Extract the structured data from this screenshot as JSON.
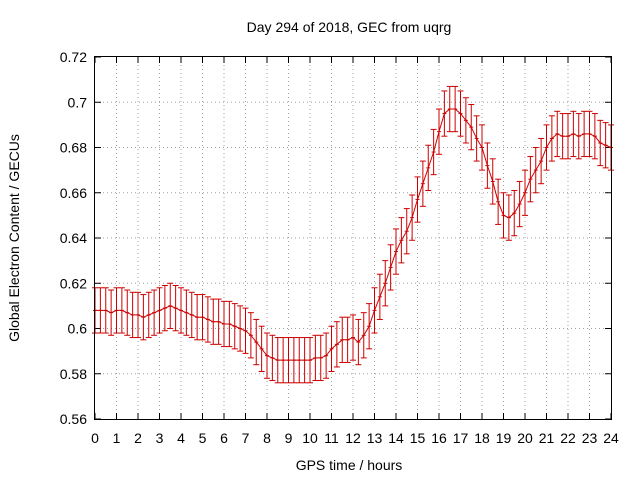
{
  "chart_data": {
    "type": "line",
    "title": "Day 294 of 2018, GEC from uqrg",
    "xlabel": "GPS time / hours",
    "ylabel": "Global Electron Content / GECUs",
    "xlim": [
      0,
      24
    ],
    "ylim": [
      0.56,
      0.72
    ],
    "grid": true,
    "x_ticks": [
      0,
      1,
      2,
      3,
      4,
      5,
      6,
      7,
      8,
      9,
      10,
      11,
      12,
      13,
      14,
      15,
      16,
      17,
      18,
      19,
      20,
      21,
      22,
      23,
      24
    ],
    "x_tick_labels": [
      "0",
      "1",
      "2",
      "3",
      "4",
      "5",
      "6",
      "7",
      "8",
      "9",
      "10",
      "11",
      "12",
      "13",
      "14",
      "15",
      "16",
      "17",
      "18",
      "19",
      "20",
      "21",
      "22",
      "23",
      "24"
    ],
    "y_ticks": [
      0.56,
      0.58,
      0.6,
      0.62,
      0.64,
      0.66,
      0.68,
      0.7,
      0.72
    ],
    "y_tick_labels": [
      "0.56",
      "0.58",
      "0.6",
      "0.62",
      "0.64",
      "0.66",
      "0.68",
      "0.7",
      "0.72"
    ],
    "colors": {
      "series": "#cc0000"
    },
    "series": [
      {
        "x": [
          0,
          0.25,
          0.5,
          0.75,
          1,
          1.25,
          1.5,
          1.75,
          2,
          2.25,
          2.5,
          2.75,
          3,
          3.25,
          3.5,
          3.75,
          4,
          4.25,
          4.5,
          4.75,
          5,
          5.25,
          5.5,
          5.75,
          6,
          6.25,
          6.5,
          6.75,
          7,
          7.25,
          7.5,
          7.75,
          8,
          8.25,
          8.5,
          8.75,
          9,
          9.25,
          9.5,
          9.75,
          10,
          10.25,
          10.5,
          10.75,
          11,
          11.25,
          11.5,
          11.75,
          12,
          12.25,
          12.5,
          12.75,
          13,
          13.25,
          13.5,
          13.75,
          14,
          14.25,
          14.5,
          14.75,
          15,
          15.25,
          15.5,
          15.75,
          16,
          16.25,
          16.5,
          16.75,
          17,
          17.25,
          17.5,
          17.75,
          18,
          18.25,
          18.5,
          18.75,
          19,
          19.25,
          19.5,
          19.75,
          20,
          20.25,
          20.5,
          20.75,
          21,
          21.25,
          21.5,
          21.75,
          22,
          22.25,
          22.5,
          22.75,
          23,
          23.25,
          23.5,
          23.75,
          24
        ],
        "y": [
          0.608,
          0.608,
          0.608,
          0.607,
          0.608,
          0.608,
          0.607,
          0.606,
          0.606,
          0.605,
          0.606,
          0.607,
          0.608,
          0.609,
          0.61,
          0.609,
          0.608,
          0.607,
          0.606,
          0.605,
          0.605,
          0.604,
          0.603,
          0.603,
          0.602,
          0.602,
          0.601,
          0.6,
          0.599,
          0.597,
          0.594,
          0.591,
          0.588,
          0.587,
          0.586,
          0.586,
          0.586,
          0.586,
          0.586,
          0.586,
          0.586,
          0.587,
          0.587,
          0.588,
          0.591,
          0.593,
          0.595,
          0.595,
          0.596,
          0.594,
          0.597,
          0.601,
          0.608,
          0.614,
          0.62,
          0.627,
          0.634,
          0.639,
          0.643,
          0.649,
          0.657,
          0.664,
          0.671,
          0.678,
          0.687,
          0.695,
          0.697,
          0.697,
          0.695,
          0.692,
          0.689,
          0.684,
          0.68,
          0.672,
          0.665,
          0.656,
          0.65,
          0.649,
          0.651,
          0.655,
          0.66,
          0.666,
          0.67,
          0.674,
          0.68,
          0.684,
          0.686,
          0.685,
          0.685,
          0.686,
          0.685,
          0.686,
          0.686,
          0.685,
          0.682,
          0.681,
          0.68
        ],
        "error": [
          0.01,
          0.01,
          0.01,
          0.01,
          0.01,
          0.01,
          0.01,
          0.01,
          0.01,
          0.01,
          0.01,
          0.01,
          0.01,
          0.01,
          0.01,
          0.01,
          0.01,
          0.01,
          0.01,
          0.01,
          0.01,
          0.01,
          0.01,
          0.01,
          0.01,
          0.01,
          0.01,
          0.01,
          0.01,
          0.01,
          0.01,
          0.01,
          0.01,
          0.01,
          0.01,
          0.01,
          0.01,
          0.01,
          0.01,
          0.01,
          0.01,
          0.01,
          0.01,
          0.01,
          0.01,
          0.01,
          0.01,
          0.01,
          0.01,
          0.01,
          0.01,
          0.01,
          0.01,
          0.01,
          0.01,
          0.01,
          0.01,
          0.01,
          0.01,
          0.01,
          0.01,
          0.01,
          0.01,
          0.01,
          0.01,
          0.01,
          0.01,
          0.01,
          0.01,
          0.01,
          0.01,
          0.01,
          0.01,
          0.01,
          0.01,
          0.01,
          0.01,
          0.01,
          0.01,
          0.01,
          0.01,
          0.01,
          0.01,
          0.01,
          0.01,
          0.01,
          0.01,
          0.01,
          0.01,
          0.01,
          0.01,
          0.01,
          0.01,
          0.01,
          0.01,
          0.01,
          0.01
        ]
      }
    ]
  }
}
